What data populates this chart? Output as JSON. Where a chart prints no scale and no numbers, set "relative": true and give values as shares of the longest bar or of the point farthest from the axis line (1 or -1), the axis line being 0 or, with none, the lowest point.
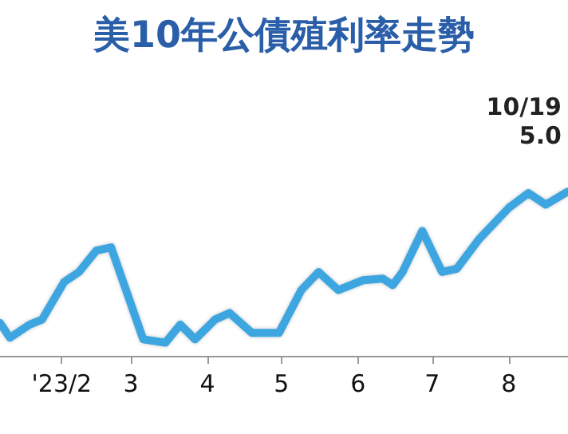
{
  "chart_data": {
    "type": "line",
    "title": "美10年公債殖利率走勢",
    "annotations": [
      "10/19 5.0"
    ],
    "relative": true,
    "marker": "none",
    "line_style": "solid",
    "x": [
      "2023-01-07",
      "2023-01-11",
      "2023-01-19",
      "2023-01-24",
      "2023-02-02",
      "2023-02-08",
      "2023-02-15",
      "2023-02-21",
      "2023-03-06",
      "2023-03-15",
      "2023-03-21",
      "2023-03-27",
      "2023-04-04",
      "2023-04-10",
      "2023-04-19",
      "2023-04-30",
      "2023-05-09",
      "2023-05-16",
      "2023-05-24",
      "2023-06-03",
      "2023-06-11",
      "2023-06-15",
      "2023-06-19",
      "2023-06-27",
      "2023-07-05",
      "2023-07-11",
      "2023-07-20",
      "2023-08-01",
      "2023-08-09",
      "2023-08-16",
      "2023-08-25"
    ],
    "series": [
      {
        "color": "#3ea6e0",
        "values": [
          0.2,
          0.11,
          0.19,
          0.22,
          0.45,
          0.51,
          0.64,
          0.66,
          0.1,
          0.08,
          0.19,
          0.1,
          0.22,
          0.26,
          0.14,
          0.14,
          0.4,
          0.51,
          0.4,
          0.46,
          0.47,
          0.43,
          0.51,
          0.76,
          0.51,
          0.53,
          0.71,
          0.9,
          0.99,
          0.92,
          1.0
        ]
      }
    ],
    "xlim": [
      "2023-01-07",
      "2023-08-25"
    ],
    "xticks": [
      {
        "value": "2023-02-01",
        "label": "'23/2"
      },
      {
        "value": "2023-03-01",
        "label": "3"
      },
      {
        "value": "2023-04-01",
        "label": "4"
      },
      {
        "value": "2023-05-01",
        "label": "5"
      },
      {
        "value": "2023-06-01",
        "label": "6"
      },
      {
        "value": "2023-07-01",
        "label": "7"
      },
      {
        "value": "2023-08-01",
        "label": "8"
      }
    ]
  }
}
